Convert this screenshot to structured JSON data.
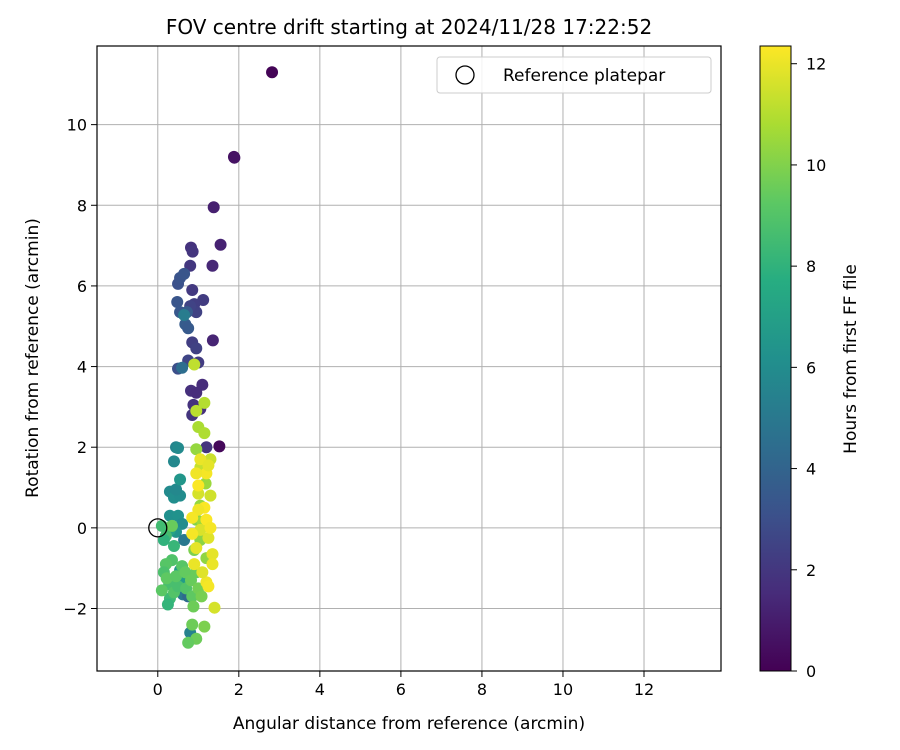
{
  "chart_data": {
    "type": "scatter",
    "title": "FOV centre drift starting at 2024/11/28 17:22:52",
    "xlabel": "Angular distance from reference (arcmin)",
    "ylabel": "Rotation from reference (arcmin)",
    "xlim": [
      -1.5,
      13.9
    ],
    "ylim": [
      -3.55,
      11.95
    ],
    "xticks": [
      0,
      2,
      4,
      6,
      8,
      10,
      12
    ],
    "yticks": [
      -2,
      0,
      2,
      4,
      6,
      8,
      10
    ],
    "grid": true,
    "legend": {
      "position": "top-right",
      "entries": [
        "Reference platepar"
      ]
    },
    "reference_point": {
      "x": 0,
      "y": 0
    },
    "colorbar": {
      "label": "Hours from first FF file",
      "colormap": "viridis",
      "range": [
        0,
        12.35
      ],
      "ticks": [
        0,
        2,
        4,
        6,
        8,
        10,
        12
      ]
    },
    "point_columns": [
      "x",
      "y",
      "hours"
    ],
    "points": [
      [
        2.82,
        11.3,
        0.1
      ],
      [
        1.88,
        9.2,
        0.5
      ],
      [
        1.89,
        9.18,
        0.6
      ],
      [
        1.52,
        2.02,
        0.3
      ],
      [
        1.38,
        7.95,
        1.1
      ],
      [
        1.55,
        7.02,
        1.2
      ],
      [
        1.35,
        6.5,
        1.4
      ],
      [
        1.36,
        4.65,
        1.3
      ],
      [
        0.82,
        6.95,
        1.8
      ],
      [
        0.86,
        6.85,
        1.9
      ],
      [
        0.8,
        6.5,
        2.0
      ],
      [
        0.85,
        5.9,
        2.1
      ],
      [
        1.12,
        5.65,
        2.2
      ],
      [
        0.9,
        5.55,
        2.3
      ],
      [
        0.95,
        5.35,
        2.4
      ],
      [
        0.8,
        5.5,
        2.5
      ],
      [
        1.1,
        3.55,
        1.6
      ],
      [
        0.82,
        3.4,
        1.7
      ],
      [
        0.95,
        3.35,
        1.6
      ],
      [
        0.88,
        3.05,
        1.8
      ],
      [
        0.85,
        2.8,
        1.9
      ],
      [
        1.05,
        2.95,
        1.7
      ],
      [
        0.85,
        4.6,
        2.3
      ],
      [
        0.95,
        4.45,
        2.4
      ],
      [
        0.75,
        4.15,
        2.6
      ],
      [
        1.0,
        4.1,
        2.2
      ],
      [
        1.2,
        2.0,
        1.9
      ],
      [
        0.5,
        3.95,
        3.0
      ],
      [
        0.5,
        6.05,
        3.1
      ],
      [
        0.55,
        6.2,
        3.2
      ],
      [
        0.65,
        6.3,
        3.3
      ],
      [
        0.48,
        5.6,
        3.3
      ],
      [
        0.55,
        5.35,
        3.4
      ],
      [
        0.72,
        5.35,
        3.5
      ],
      [
        0.68,
        5.05,
        3.6
      ],
      [
        0.75,
        4.95,
        3.5
      ],
      [
        0.65,
        5.28,
        5.2
      ],
      [
        0.6,
        3.97,
        4.5
      ],
      [
        0.45,
        2.0,
        5.6
      ],
      [
        0.4,
        1.65,
        5.8
      ],
      [
        0.5,
        1.98,
        5.9
      ],
      [
        0.3,
        0.9,
        5.9
      ],
      [
        0.4,
        0.75,
        6.1
      ],
      [
        0.55,
        0.8,
        6.0
      ],
      [
        0.45,
        0.95,
        5.8
      ],
      [
        0.3,
        0.3,
        6.2
      ],
      [
        0.5,
        0.3,
        6.3
      ],
      [
        0.6,
        0.1,
        6.0
      ],
      [
        0.45,
        -0.1,
        6.4
      ],
      [
        0.55,
        1.2,
        6.5
      ],
      [
        0.65,
        -0.3,
        5.0
      ],
      [
        0.55,
        -1.05,
        6.6
      ],
      [
        0.65,
        -1.35,
        6.8
      ],
      [
        0.62,
        -1.65,
        5.1
      ],
      [
        0.75,
        -1.7,
        4.3
      ],
      [
        0.8,
        -2.6,
        5.5
      ],
      [
        0.3,
        -0.05,
        7.2
      ],
      [
        0.4,
        -0.45,
        8.2
      ],
      [
        0.2,
        -0.2,
        8.6
      ],
      [
        0.35,
        -0.8,
        8.9
      ],
      [
        0.2,
        -0.9,
        9.1
      ],
      [
        0.15,
        -1.1,
        8.8
      ],
      [
        0.28,
        -1.4,
        8.7
      ],
      [
        0.3,
        -1.75,
        8.4
      ],
      [
        0.25,
        -1.9,
        8.1
      ],
      [
        0.1,
        -1.55,
        9.2
      ],
      [
        0.22,
        -1.25,
        9.3
      ],
      [
        0.4,
        -1.6,
        9.0
      ],
      [
        0.5,
        -1.45,
        8.7
      ],
      [
        0.45,
        -1.2,
        9.2
      ],
      [
        0.6,
        -0.95,
        9.1
      ],
      [
        0.68,
        -1.1,
        9.4
      ],
      [
        0.7,
        -1.5,
        9.0
      ],
      [
        0.82,
        -1.3,
        9.5
      ],
      [
        0.85,
        -1.7,
        9.3
      ],
      [
        0.88,
        -1.95,
        9.6
      ],
      [
        0.95,
        -1.1,
        9.5
      ],
      [
        1.0,
        -1.5,
        9.7
      ],
      [
        1.08,
        -1.7,
        9.8
      ],
      [
        1.15,
        -2.45,
        9.9
      ],
      [
        0.95,
        -2.75,
        9.6
      ],
      [
        0.75,
        -2.85,
        9.4
      ],
      [
        0.85,
        -2.4,
        9.6
      ],
      [
        0.1,
        0.05,
        8.5
      ],
      [
        0.15,
        -0.3,
        8.0
      ],
      [
        0.35,
        0.05,
        9.5
      ],
      [
        0.95,
        0.2,
        10.0
      ],
      [
        1.05,
        -0.3,
        10.2
      ],
      [
        0.9,
        -0.55,
        9.9
      ],
      [
        1.2,
        -0.75,
        10.3
      ],
      [
        1.05,
        0.55,
        10.4
      ],
      [
        1.18,
        1.1,
        10.5
      ],
      [
        1.1,
        0.15,
        10.6
      ],
      [
        0.95,
        1.95,
        10.4
      ],
      [
        1.0,
        2.5,
        10.8
      ],
      [
        1.15,
        2.35,
        10.9
      ],
      [
        1.15,
        3.1,
        11.0
      ],
      [
        0.9,
        4.05,
        11.2
      ],
      [
        0.95,
        2.9,
        11.1
      ],
      [
        1.05,
        1.5,
        11.3
      ],
      [
        1.3,
        1.7,
        11.4
      ],
      [
        1.3,
        0.8,
        11.5
      ],
      [
        1.0,
        0.85,
        11.6
      ],
      [
        1.05,
        -0.05,
        11.7
      ],
      [
        1.25,
        -0.25,
        11.8
      ],
      [
        1.35,
        -0.65,
        11.9
      ],
      [
        1.35,
        -0.9,
        12.0
      ],
      [
        1.2,
        -1.35,
        12.1
      ],
      [
        1.25,
        -1.45,
        12.2
      ],
      [
        1.4,
        -1.98,
        11.6
      ],
      [
        1.1,
        -1.1,
        11.8
      ],
      [
        0.9,
        -0.9,
        12.0
      ],
      [
        0.85,
        -0.15,
        12.2
      ],
      [
        1.15,
        0.5,
        12.3
      ],
      [
        1.0,
        1.05,
        12.3
      ],
      [
        1.2,
        1.35,
        12.2
      ],
      [
        0.95,
        1.35,
        12.1
      ],
      [
        1.05,
        1.7,
        12.0
      ],
      [
        1.25,
        1.55,
        11.9
      ],
      [
        1.0,
        0.45,
        12.1
      ],
      [
        0.85,
        0.25,
        12.2
      ],
      [
        1.2,
        0.2,
        12.3
      ],
      [
        1.3,
        0.0,
        12.2
      ],
      [
        0.95,
        -0.5,
        11.9
      ]
    ]
  }
}
